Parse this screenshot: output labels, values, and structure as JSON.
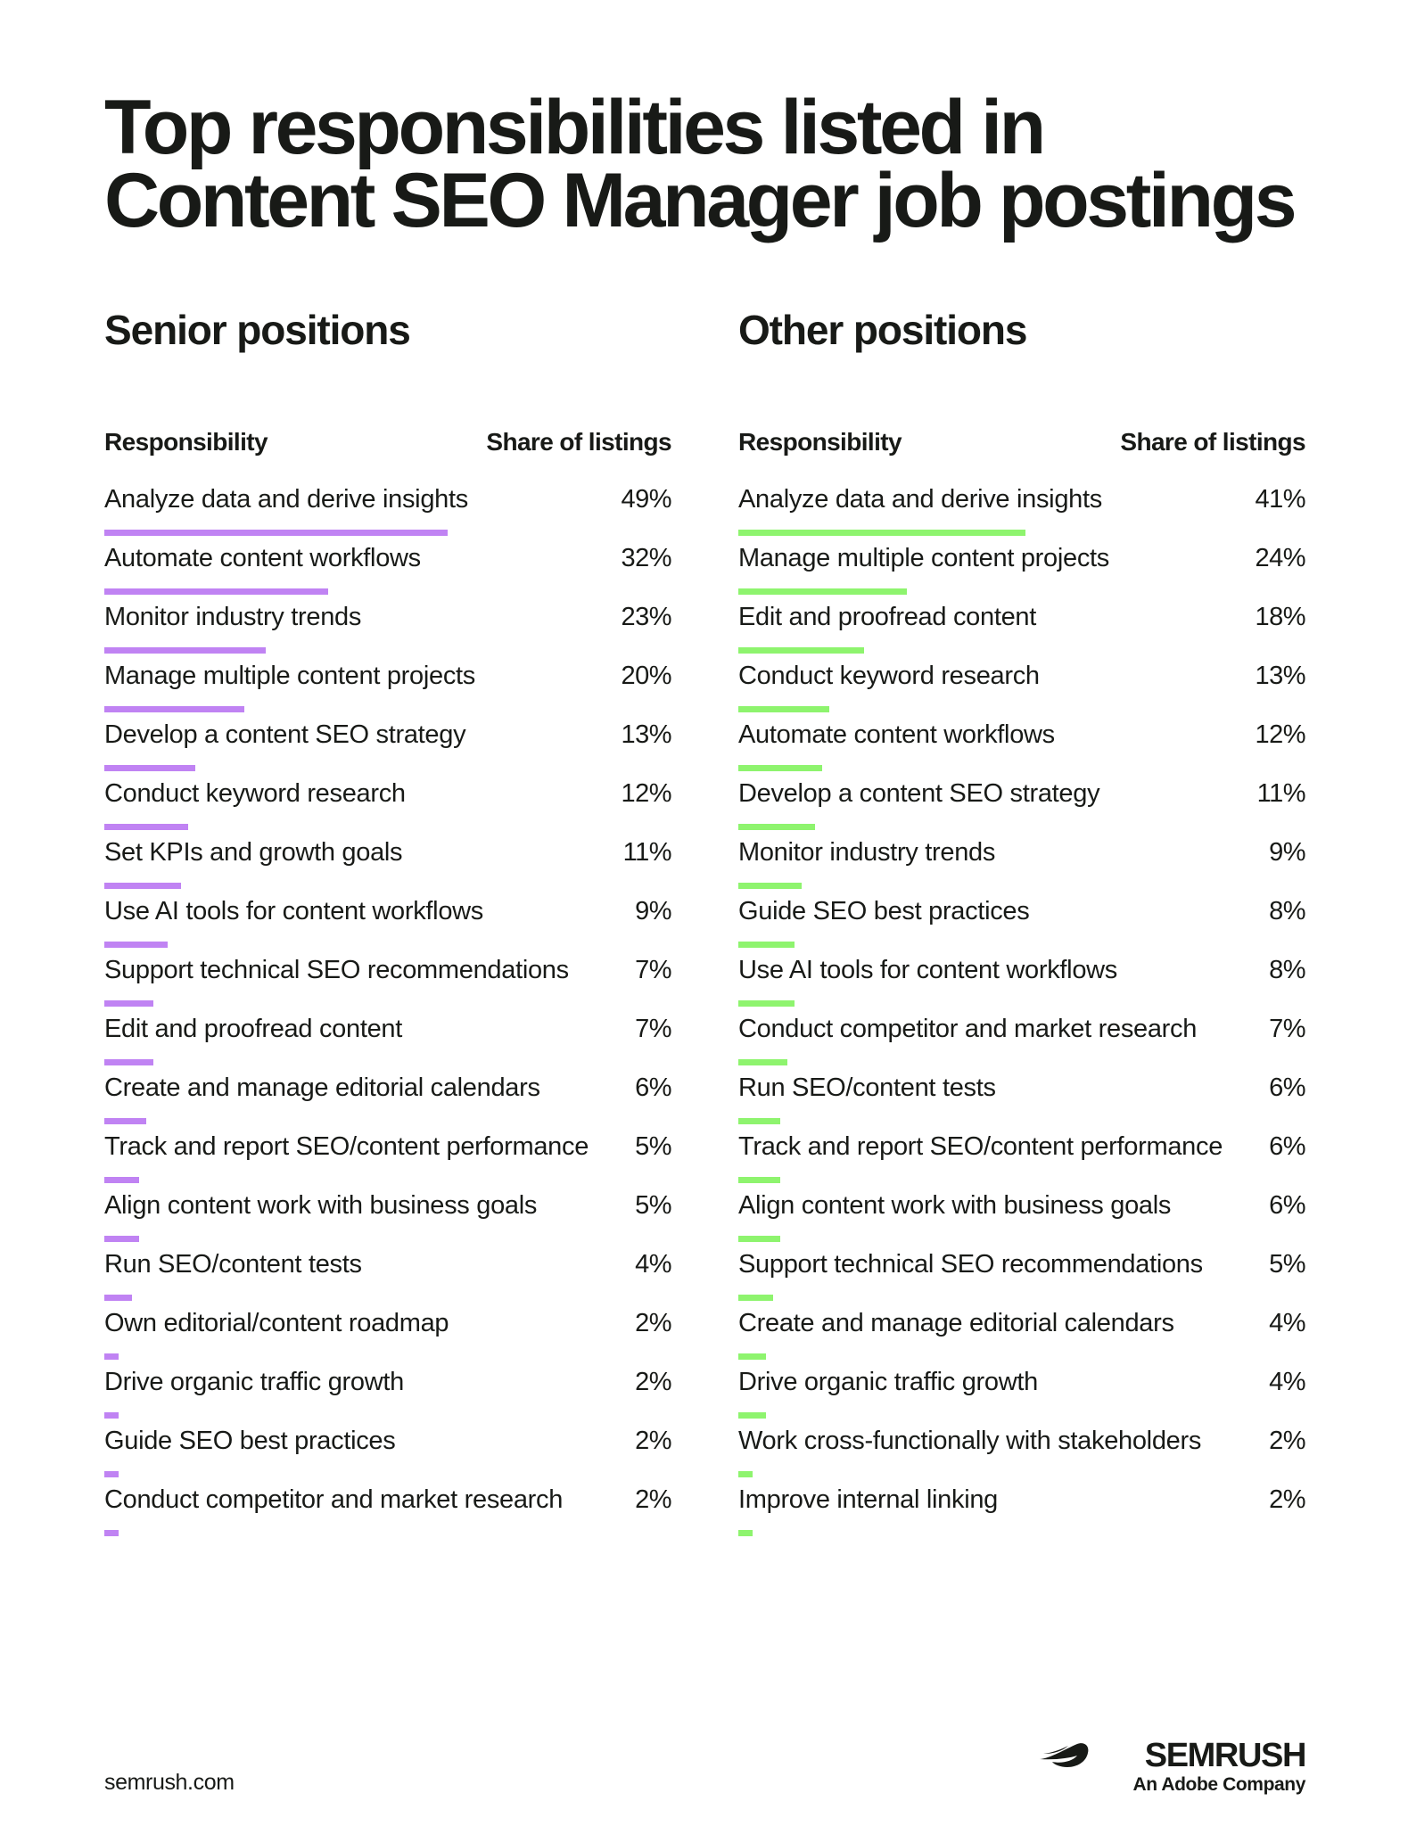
{
  "title": "Top responsibilities listed in Content SEO Manager job postings",
  "chart_data": [
    {
      "type": "bar",
      "orientation": "horizontal",
      "title": "Senior positions",
      "xlabel": "Share of listings",
      "ylabel": "Responsibility",
      "unit": "%",
      "bar_color": "#c083f3",
      "categories": [
        "Analyze data and derive insights",
        "Automate content workflows",
        "Monitor industry trends",
        "Manage multiple content projects",
        "Develop a content SEO strategy",
        "Conduct keyword research",
        "Set KPIs and growth goals",
        "Use AI tools for content workflows",
        "Support technical SEO recommendations",
        "Edit and proofread content",
        "Create and manage editorial calendars",
        "Track and report SEO/content performance",
        "Align content work with business goals",
        "Run SEO/content tests",
        "Own editorial/content roadmap",
        "Drive organic traffic growth",
        "Guide SEO best practices",
        "Conduct competitor and market research"
      ],
      "values": [
        49,
        32,
        23,
        20,
        13,
        12,
        11,
        9,
        7,
        7,
        6,
        5,
        5,
        4,
        2,
        2,
        2,
        2
      ],
      "labels": [
        "49%",
        "32%",
        "23%",
        "20%",
        "13%",
        "12%",
        "11%",
        "9%",
        "7%",
        "7%",
        "6%",
        "5%",
        "5%",
        "4%",
        "2%",
        "2%",
        "2%",
        "2%"
      ]
    },
    {
      "type": "bar",
      "orientation": "horizontal",
      "title": "Other positions",
      "xlabel": "Share of listings",
      "ylabel": "Responsibility",
      "unit": "%",
      "bar_color": "#8ef46e",
      "categories": [
        "Analyze data and derive insights",
        "Manage multiple content projects",
        "Edit and proofread content",
        "Conduct keyword research",
        "Automate content workflows",
        "Develop a content SEO strategy",
        "Monitor industry trends",
        "Guide SEO best practices",
        "Use AI tools for content workflows",
        "Conduct competitor and market research",
        "Run SEO/content tests",
        "Track and report SEO/content performance",
        "Align content work with business goals",
        "Support technical SEO recommendations",
        "Create and manage editorial calendars",
        "Drive organic traffic growth",
        "Work cross-functionally with stakeholders",
        "Improve internal linking"
      ],
      "values": [
        41,
        24,
        18,
        13,
        12,
        11,
        9,
        8,
        8,
        7,
        6,
        6,
        6,
        5,
        4,
        4,
        2,
        2
      ],
      "labels": [
        "41%",
        "24%",
        "18%",
        "13%",
        "12%",
        "11%",
        "9%",
        "8%",
        "8%",
        "7%",
        "6%",
        "6%",
        "6%",
        "5%",
        "4%",
        "4%",
        "2%",
        "2%"
      ]
    }
  ],
  "footer": {
    "url": "semrush.com",
    "brand_name": "SEMRUSH",
    "brand_tagline": "An Adobe Company",
    "brand_icon": "semrush-fireball-icon"
  }
}
